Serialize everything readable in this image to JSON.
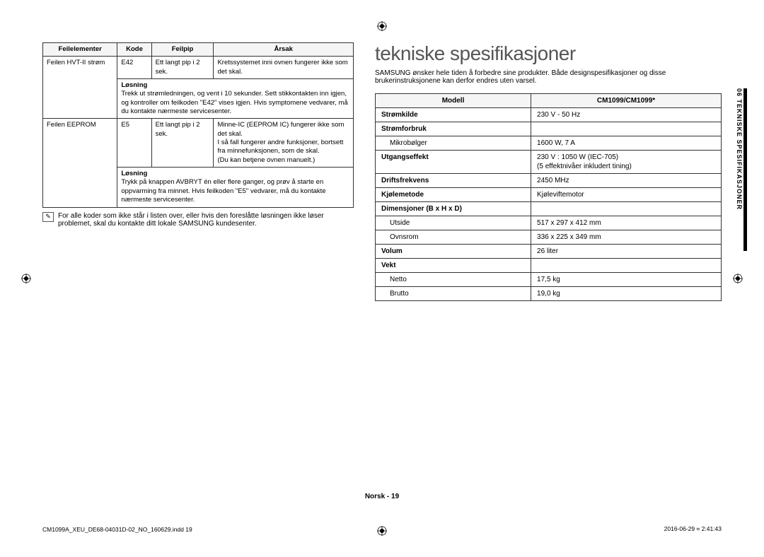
{
  "error_table": {
    "headers": [
      "Feilelementer",
      "Kode",
      "Feilpip",
      "Årsak"
    ],
    "rows": [
      {
        "element": "Feilen HVT-II strøm",
        "code": "E42",
        "beep": "Ett langt pip i 2 sek.",
        "cause": "Kretssystemet inni ovnen fungerer ikke som det skal.",
        "solution_label": "Løsning",
        "solution": "Trekk ut strømledningen, og vent i 10 sekunder.\nSett stikkontakten inn igjen, og kontroller om feilkoden \"E42\" vises igjen. Hvis symptomene vedvarer, må du kontakte nærmeste servicesenter."
      },
      {
        "element": "Feilen EEPROM",
        "code": "E5",
        "beep": "Ett langt pip i 2 sek.",
        "cause": "Minne-IC (EEPROM IC) fungerer ikke som det skal.\nI så fall fungerer andre funksjoner, bortsett fra minnefunksjonen, som de skal.\n(Du kan betjene ovnen manuelt.)",
        "solution_label": "Løsning",
        "solution": "Trykk på knappen AVBRYT én eller flere ganger, og prøv å starte en oppvarming fra minnet. Hvis feilkoden \"E5\" vedvarer, må du kontakte nærmeste servicesenter."
      }
    ],
    "note": "For alle koder som ikke står i listen over, eller hvis den foreslåtte løsningen ikke løser problemet, skal du kontakte ditt lokale SAMSUNG kundesenter."
  },
  "spec": {
    "title": "tekniske spesifikasjoner",
    "intro": "SAMSUNG ønsker hele tiden å forbedre sine produkter. Både designspesifikasjoner og disse brukerinstruksjonene kan derfor endres uten varsel.",
    "header": [
      "Modell",
      "CM1099/CM1099*"
    ],
    "rows": [
      {
        "param": "Strømkilde",
        "value": "230 V - 50 Hz"
      },
      {
        "param": "Strømforbruk",
        "value": ""
      },
      {
        "param_indent": "Mikrobølger",
        "value": "1600 W, 7 A"
      },
      {
        "param": "Utgangseffekt",
        "value": "230 V : 1050 W (IEC-705)\n(5 effektnivåer inkludert tining)"
      },
      {
        "param": "Driftsfrekvens",
        "value": "2450 MHz"
      },
      {
        "param": "Kjølemetode",
        "value": "Kjøleviftemotor"
      },
      {
        "param": "Dimensjoner (B x H x D)",
        "value": ""
      },
      {
        "param_indent": "Utside",
        "value": "517 x 297 x 412 mm"
      },
      {
        "param_indent": "Ovnsrom",
        "value": "336 x 225 x 349 mm"
      },
      {
        "param": "Volum",
        "value": "26 liter"
      },
      {
        "param": "Vekt",
        "value": ""
      },
      {
        "param_indent": "Netto",
        "value": "17,5 kg"
      },
      {
        "param_indent": "Brutto",
        "value": "19,0 kg"
      }
    ]
  },
  "side_tab": "06  TEKNISKE SPESIFIKASJONER",
  "footer": {
    "center": "Norsk - 19",
    "left": "CM1099A_XEU_DE68-04031D-02_NO_160629.indd   19",
    "right": "2016-06-29   ⌗ 2:41:43"
  },
  "colors": {
    "border": "#333333",
    "heading": "#555555"
  }
}
